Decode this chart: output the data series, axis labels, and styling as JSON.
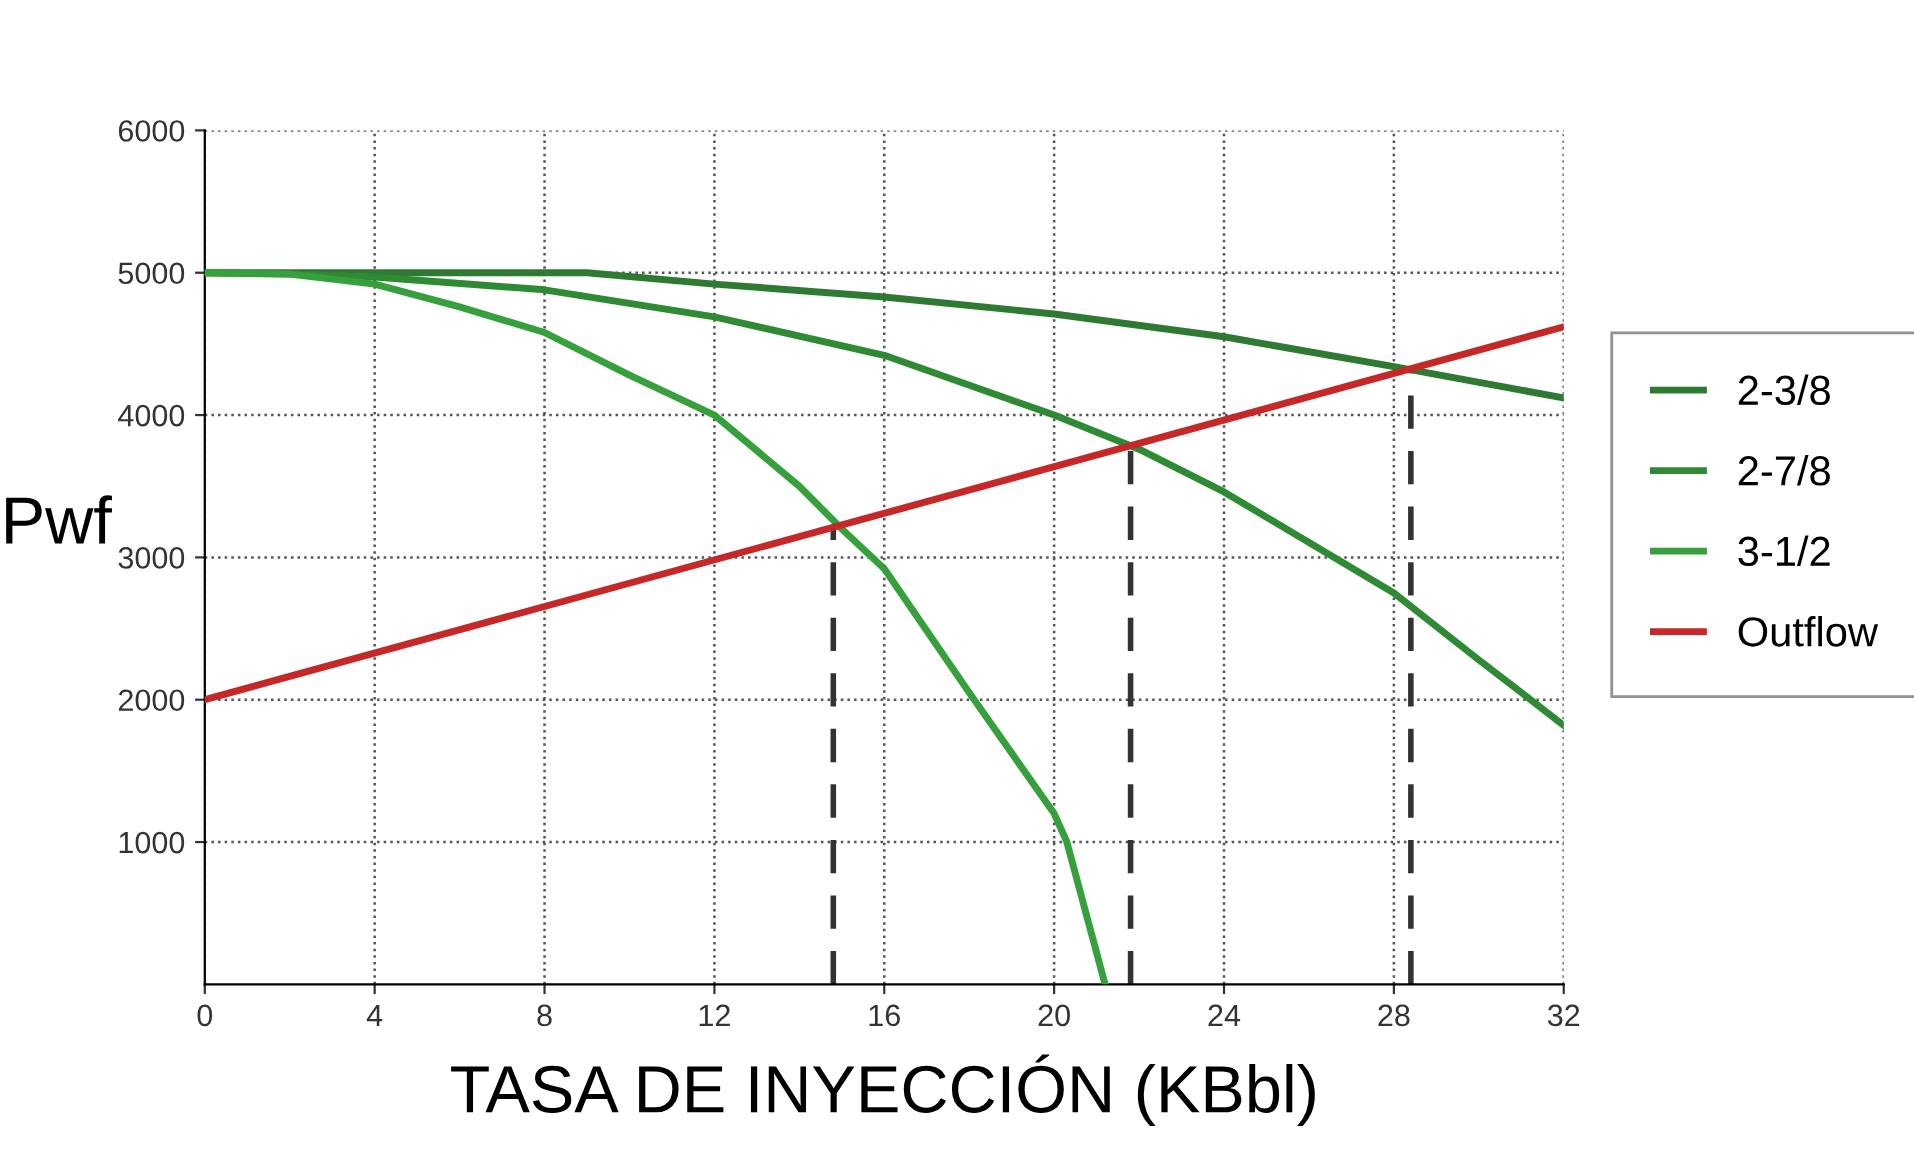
{
  "chart_data": {
    "type": "line",
    "xlabel": "TASA DE INYECCIÓN (KBbl)",
    "ylabel": "Pwf",
    "xlim": [
      0,
      32
    ],
    "ylim": [
      0,
      6000
    ],
    "xticks": [
      0,
      4,
      8,
      12,
      16,
      20,
      24,
      28,
      32
    ],
    "yticks": [
      1000,
      2000,
      3000,
      4000,
      5000,
      6000
    ],
    "grid": true,
    "legend": "right",
    "marker": "none",
    "line_style": "solid",
    "series": [
      {
        "name": "2-3/8",
        "color": "#2e7a32",
        "x": [
          0,
          2,
          8,
          9,
          12,
          16,
          20,
          24,
          28,
          32
        ],
        "values": [
          5000,
          5000,
          5000,
          5000,
          4920,
          4830,
          4710,
          4550,
          4340,
          4120
        ]
      },
      {
        "name": "2-7/8",
        "color": "#2e8b34",
        "x": [
          0,
          2,
          4,
          8,
          12,
          16,
          20,
          22,
          24,
          28,
          30,
          32
        ],
        "values": [
          5000,
          4990,
          4970,
          4880,
          4690,
          4420,
          4000,
          3760,
          3460,
          2750,
          2280,
          1820
        ]
      },
      {
        "name": "3-1/2",
        "color": "#35a03c",
        "x": [
          0,
          2,
          4,
          6,
          8,
          10,
          12,
          14,
          15,
          16,
          18,
          20,
          20.3,
          21.2
        ],
        "values": [
          5000,
          4990,
          4920,
          4760,
          4580,
          4280,
          4000,
          3500,
          3200,
          2920,
          2050,
          1200,
          1000,
          0
        ]
      },
      {
        "name": "Outflow",
        "color": "#c62828",
        "x": [
          0,
          32
        ],
        "values": [
          2000,
          4620
        ]
      },
      {
        "color": "#333333",
        "line_style": "dashed",
        "x": [
          14.8,
          14.8
        ],
        "values": [
          0,
          3200
        ]
      },
      {
        "color": "#333333",
        "line_style": "dashed",
        "x": [
          21.8,
          21.8
        ],
        "values": [
          0,
          3770
        ]
      },
      {
        "color": "#333333",
        "line_style": "dashed",
        "x": [
          28.4,
          28.4
        ],
        "values": [
          0,
          4320
        ]
      }
    ]
  }
}
